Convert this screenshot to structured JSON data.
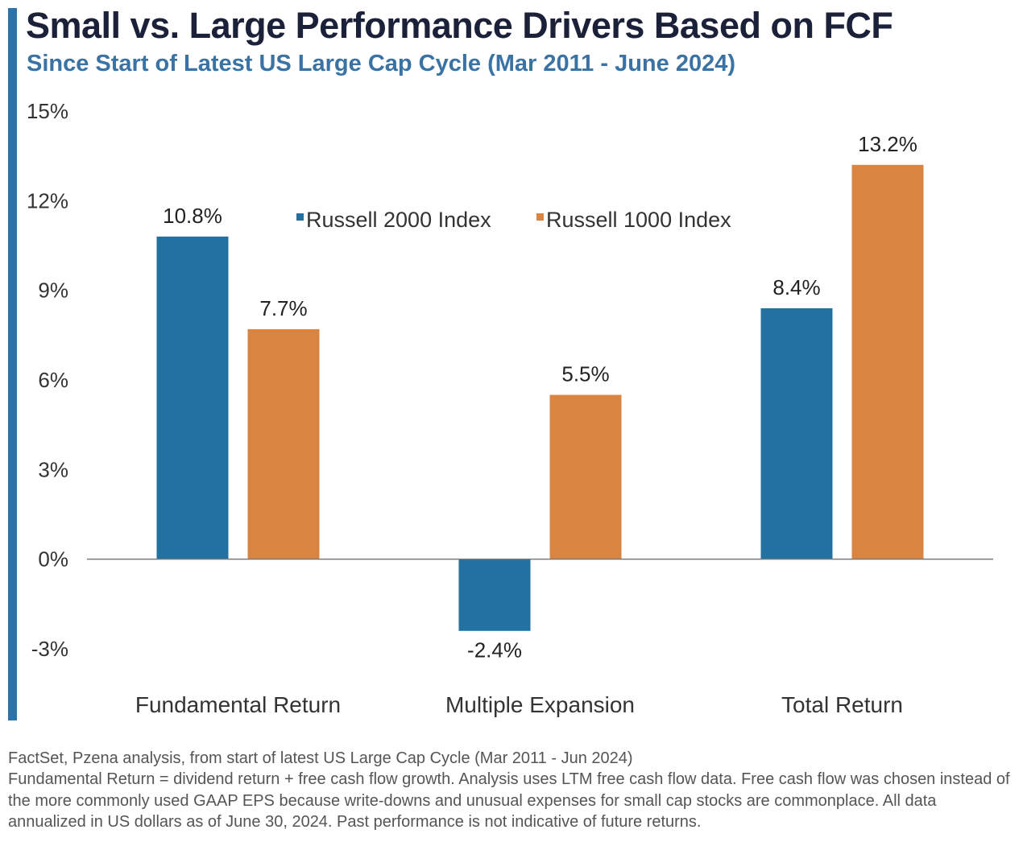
{
  "title": "Small vs. Large Performance Drivers Based on FCF",
  "subtitle": "Since Start of Latest US Large Cap Cycle (Mar 2011 - June 2024)",
  "colors": {
    "accent": "#2b73a8",
    "title": "#1a2138",
    "subtitle": "#3a72a4"
  },
  "chart_data": {
    "type": "bar",
    "categories": [
      "Fundamental Return",
      "Multiple Expansion",
      "Total Return"
    ],
    "series": [
      {
        "name": "Russell 2000 Index",
        "color": "#2271a0",
        "values": [
          10.8,
          -2.4,
          8.4
        ],
        "labels": [
          "10.8%",
          "-2.4%",
          "8.4%"
        ]
      },
      {
        "name": "Russell 1000 Index",
        "color": "#d98441",
        "values": [
          7.7,
          5.5,
          13.2
        ],
        "labels": [
          "7.7%",
          "5.5%",
          "13.2%"
        ]
      }
    ],
    "ylim": [
      -3,
      15
    ],
    "yticks": [
      -3,
      0,
      3,
      6,
      9,
      12,
      15
    ],
    "ytick_labels": [
      "-3%",
      "0%",
      "3%",
      "6%",
      "9%",
      "12%",
      "15%"
    ],
    "legend_position": "top-center",
    "grid": false
  },
  "footnote": "FactSet, Pzena analysis, from start of latest US Large Cap Cycle (Mar 2011 - Jun 2024)\nFundamental Return = dividend return + free cash flow growth. Analysis uses LTM free cash flow data. Free cash flow was chosen instead of the more commonly used GAAP EPS because write-downs and unusual expenses for small cap stocks are commonplace.  All data annualized in US dollars as of June 30, 2024. Past performance is not indicative of future returns."
}
